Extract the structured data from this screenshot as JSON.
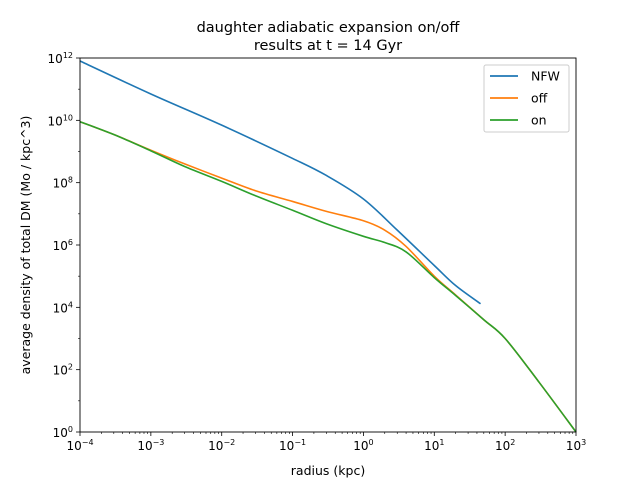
{
  "chart_data": {
    "type": "line",
    "title": "daughter adiabatic expansion on/off",
    "subtitle": "results at t = 14 Gyr",
    "xlabel": "radius (kpc)",
    "ylabel": "average density of total DM (Mo / kpc^3)",
    "xscale": "log",
    "yscale": "log",
    "xlim": [
      0.0001,
      1000
    ],
    "ylim": [
      1,
      1000000000000
    ],
    "x_ticks": [
      {
        "value": 0.0001,
        "base": "10",
        "exp": "−4"
      },
      {
        "value": 0.001,
        "base": "10",
        "exp": "−3"
      },
      {
        "value": 0.01,
        "base": "10",
        "exp": "−2"
      },
      {
        "value": 0.1,
        "base": "10",
        "exp": "−1"
      },
      {
        "value": 1,
        "base": "10",
        "exp": "0"
      },
      {
        "value": 10,
        "base": "10",
        "exp": "1"
      },
      {
        "value": 100,
        "base": "10",
        "exp": "2"
      },
      {
        "value": 1000,
        "base": "10",
        "exp": "3"
      }
    ],
    "y_ticks": [
      {
        "value": 1,
        "base": "10",
        "exp": "0"
      },
      {
        "value": 100,
        "base": "10",
        "exp": "2"
      },
      {
        "value": 10000,
        "base": "10",
        "exp": "4"
      },
      {
        "value": 1000000,
        "base": "10",
        "exp": "6"
      },
      {
        "value": 100000000,
        "base": "10",
        "exp": "8"
      },
      {
        "value": 10000000000,
        "base": "10",
        "exp": "10"
      },
      {
        "value": 1000000000000,
        "base": "10",
        "exp": "12"
      }
    ],
    "legend_position": "top-right",
    "grid": false,
    "series": [
      {
        "name": "NFW",
        "color": "#1f77b4",
        "x": [
          0.0001,
          0.001,
          0.01,
          0.1,
          0.3,
          1,
          3,
          10,
          20,
          45
        ],
        "y": [
          800000000000,
          70000000000,
          7000000000,
          600000000,
          170000000,
          30000000,
          3000000,
          220000,
          50000,
          13000
        ]
      },
      {
        "name": "off",
        "color": "#ff7f0e",
        "x": [
          0.0001,
          0.0003,
          0.001,
          0.003,
          0.01,
          0.03,
          0.1,
          0.3,
          1,
          2,
          4,
          10,
          20,
          50,
          100,
          300,
          1000
        ],
        "y": [
          9000000000,
          3500000000,
          1100000000,
          400000000,
          140000000,
          55000000,
          25000000,
          12000000,
          6000000,
          3000000,
          900000,
          100000,
          25000,
          4000,
          1000,
          40,
          1
        ]
      },
      {
        "name": "on",
        "color": "#2ca02c",
        "x": [
          0.0001,
          0.0003,
          0.001,
          0.003,
          0.01,
          0.03,
          0.1,
          0.3,
          1,
          2,
          4,
          10,
          20,
          50,
          100,
          300,
          1000
        ],
        "y": [
          9000000000,
          3500000000,
          1050000000,
          330000000,
          110000000,
          38000000,
          13000000,
          4800000,
          1900000,
          1200000,
          600000,
          90000,
          24000,
          4000,
          1000,
          40,
          1
        ]
      }
    ]
  }
}
